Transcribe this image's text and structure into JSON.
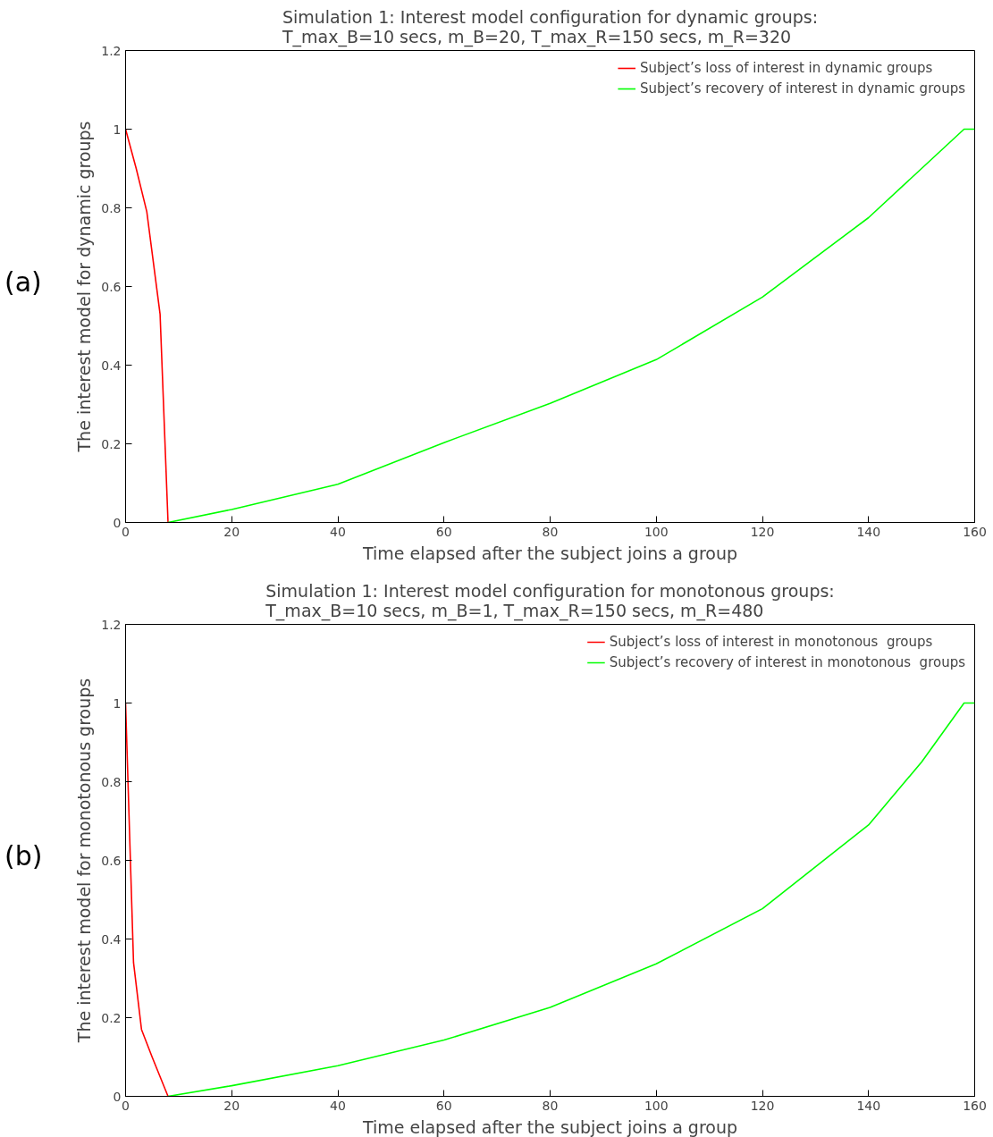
{
  "chart_data": [
    {
      "type": "line",
      "title": "Simulation 1: Interest model configuration for dynamic groups:\nT_max_B=10 secs, m_B=20, T_max_R=150 secs, m_R=320",
      "xlabel": "Time elapsed after the subject joins a group",
      "ylabel": "The interest model for dynamic groups",
      "annotations": [
        "(a)"
      ],
      "xlim": [
        0,
        160
      ],
      "ylim": [
        0,
        1.2
      ],
      "xticks": [
        0,
        20,
        40,
        60,
        80,
        100,
        120,
        140,
        160
      ],
      "yticks": [
        0,
        0.2,
        0.4,
        0.6,
        0.8,
        1,
        1.2
      ],
      "grid": false,
      "legend": "top right",
      "series": [
        {
          "name": "Subject’s loss of interest in dynamic groups",
          "color": "#ff0000",
          "x": [
            0,
            2,
            4,
            6.5,
            8
          ],
          "values": [
            1,
            0.9,
            0.79,
            0.53,
            0
          ]
        },
        {
          "name": "Subject’s recovery of interest in dynamic groups",
          "color": "#00ff00",
          "x": [
            8,
            20,
            40,
            60,
            80,
            100,
            120,
            140,
            158,
            160
          ],
          "values": [
            0,
            0.033,
            0.097,
            0.203,
            0.303,
            0.414,
            0.573,
            0.775,
            1,
            1
          ]
        }
      ]
    },
    {
      "type": "line",
      "title": "Simulation 1: Interest model configuration for monotonous groups:\nT_max_B=10 secs, m_B=1, T_max_R=150 secs, m_R=480",
      "xlabel": "Time elapsed after the subject joins a group",
      "ylabel": "The interest model for monotonous groups",
      "annotations": [
        "(b)"
      ],
      "xlim": [
        0,
        160
      ],
      "ylim": [
        0,
        1.2
      ],
      "xticks": [
        0,
        20,
        40,
        60,
        80,
        100,
        120,
        140,
        160
      ],
      "yticks": [
        0,
        0.2,
        0.4,
        0.6,
        0.8,
        1,
        1.2
      ],
      "grid": false,
      "legend": "top right",
      "series": [
        {
          "name": "Subject’s loss of interest in monotonous  groups",
          "color": "#ff0000",
          "x": [
            0,
            1.5,
            3,
            5,
            8
          ],
          "values": [
            1,
            0.34,
            0.17,
            0.1,
            0
          ]
        },
        {
          "name": "Subject’s recovery of interest in monotonous  groups",
          "color": "#00ff00",
          "x": [
            8,
            20,
            40,
            60,
            80,
            100,
            120,
            140,
            150,
            158,
            160
          ],
          "values": [
            0,
            0.027,
            0.078,
            0.143,
            0.226,
            0.337,
            0.477,
            0.69,
            0.85,
            1,
            1
          ]
        }
      ]
    }
  ]
}
